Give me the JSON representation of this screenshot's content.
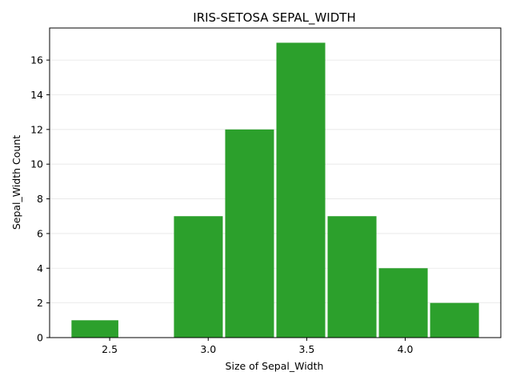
{
  "chart_data": {
    "type": "bar",
    "title": "IRIS-SETOSA SEPAL_WIDTH",
    "xlabel": "Size of Sepal_Width",
    "ylabel": "Sepal_Width Count",
    "bins": [
      {
        "start": 2.3,
        "end": 2.55,
        "count": 1
      },
      {
        "start": 2.55,
        "end": 2.82,
        "count": 0
      },
      {
        "start": 2.82,
        "end": 3.08,
        "count": 7
      },
      {
        "start": 3.08,
        "end": 3.34,
        "count": 12
      },
      {
        "start": 3.34,
        "end": 3.6,
        "count": 17
      },
      {
        "start": 3.6,
        "end": 3.86,
        "count": 7
      },
      {
        "start": 3.86,
        "end": 4.12,
        "count": 4
      },
      {
        "start": 4.12,
        "end": 4.38,
        "count": 2
      }
    ],
    "xlim": [
      2.195,
      4.485
    ],
    "ylim": [
      0,
      17.85
    ],
    "xticks": [
      "2.5",
      "3.0",
      "3.5",
      "4.0"
    ],
    "yticks": [
      "0",
      "2",
      "4",
      "6",
      "8",
      "10",
      "12",
      "14",
      "16"
    ],
    "grid": "horizontal",
    "bar_color": "#2ca02c"
  }
}
